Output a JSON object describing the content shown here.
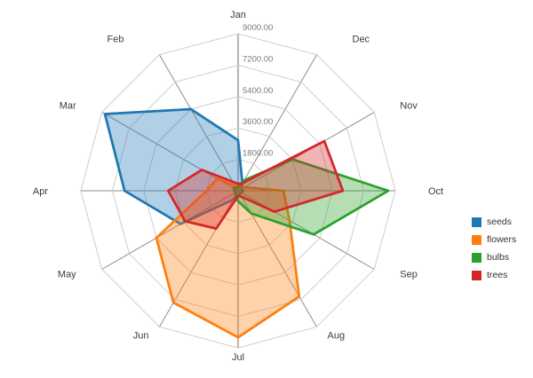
{
  "chart_data": {
    "type": "radar",
    "categories": [
      "Jan",
      "Feb",
      "Mar",
      "Apr",
      "May",
      "Jun",
      "Jul",
      "Aug",
      "Sep",
      "Oct",
      "Nov",
      "Dec"
    ],
    "rmax": 9000,
    "rticks": [
      1800,
      3600,
      5400,
      7200,
      9000
    ],
    "rtick_labels": [
      "1800.00",
      "3600.00",
      "5400.00",
      "7200.00",
      "9000.00"
    ],
    "series": [
      {
        "name": "seeds",
        "color": "#1f77b4",
        "values": [
          2900,
          5400,
          8800,
          6500,
          3800,
          600,
          300,
          200,
          200,
          300,
          200,
          500
        ]
      },
      {
        "name": "flowers",
        "color": "#ff7f0e",
        "values": [
          300,
          300,
          1400,
          1800,
          5400,
          7400,
          8400,
          7000,
          3400,
          2600,
          400,
          200
        ]
      },
      {
        "name": "bulbs",
        "color": "#2ca02c",
        "values": [
          200,
          200,
          300,
          200,
          200,
          300,
          600,
          1500,
          5000,
          8600,
          3600,
          700
        ]
      },
      {
        "name": "trees",
        "color": "#d62728",
        "values": [
          400,
          600,
          2400,
          4000,
          3500,
          2500,
          300,
          400,
          2400,
          6000,
          5700,
          500
        ]
      }
    ],
    "layout": {
      "center_x": 268,
      "center_y": 215,
      "radius_px": 177,
      "rings": 5,
      "start_angle_deg": 90,
      "direction": "counterclockwise",
      "grid": true,
      "legend_position": "right",
      "fill_opacity": 0.35,
      "grid_ring_color": "#cccccc",
      "grid_spoke_color": "#8d8d8d",
      "radial_axis_color": "#b9b9b9"
    }
  }
}
